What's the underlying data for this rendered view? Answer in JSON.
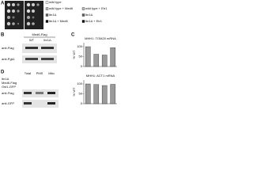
{
  "panels": [
    "A",
    "B",
    "C",
    "D"
  ],
  "legend": {
    "left": [
      "wild type",
      "wild type + Med6",
      "lbr1Δ",
      "lbr1Δ + Med6"
    ],
    "right": [
      "wild type + Etr1",
      "lbr1Δ",
      "lbr1Δ + Etr1"
    ]
  },
  "blot_b": {
    "header": "Med6-Flag",
    "lanes": [
      "WT",
      "lbr1Δ"
    ],
    "rows": [
      "anti-Flag",
      "anti-Pgk1"
    ]
  },
  "blot_d": {
    "lanes": [
      "Total",
      "PMS",
      "Mito"
    ],
    "strain": [
      "lbr1Δ",
      "Med6-Flag",
      "Ost1-GFP"
    ],
    "rows": [
      "anti-Flag",
      "anti-GFP"
    ]
  },
  "charts": [
    {
      "type": "bar",
      "title": "MHH1: TOM20 mRNA",
      "ylabel": "% WT",
      "values": [
        100,
        62,
        58,
        95
      ],
      "color": "#9a9a9a",
      "ylim": [
        0,
        120
      ],
      "yticks": [
        0,
        50,
        100
      ]
    },
    {
      "type": "bar",
      "title": "MHH1: ACT1 mRNA",
      "ylabel": "% WT",
      "values": [
        100,
        97,
        92,
        98
      ],
      "color": "#9a9a9a",
      "ylim": [
        0,
        120
      ],
      "yticks": [
        0,
        50,
        100
      ]
    }
  ]
}
